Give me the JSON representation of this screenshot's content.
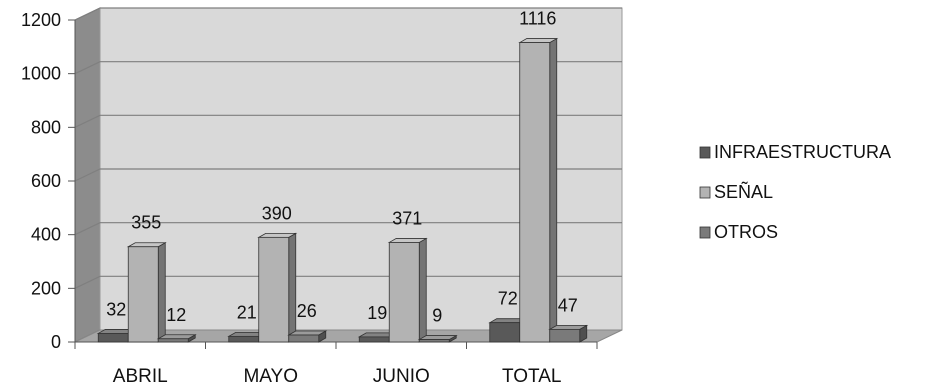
{
  "chart_data": {
    "type": "bar",
    "title": "",
    "xlabel": "",
    "ylabel": "",
    "categories": [
      "ABRIL",
      "MAYO",
      "JUNIO",
      "TOTAL"
    ],
    "series": [
      {
        "name": "INFRAESTRUCTURA",
        "values": [
          32,
          21,
          19,
          72
        ],
        "color": "#595959"
      },
      {
        "name": "SEÑAL",
        "values": [
          355,
          390,
          371,
          1116
        ],
        "color": "#b3b3b3"
      },
      {
        "name": "OTROS",
        "values": [
          12,
          26,
          9,
          47
        ],
        "color": "#7a7a7a"
      }
    ],
    "ylim": [
      0,
      1200
    ],
    "yticks": [
      0,
      200,
      400,
      600,
      800,
      1000,
      1200
    ],
    "grid": true,
    "style": "3d-clustered-column",
    "legend_position": "right",
    "wall_color": "#d9d9d9",
    "floor_color": "#a6a6a6"
  }
}
